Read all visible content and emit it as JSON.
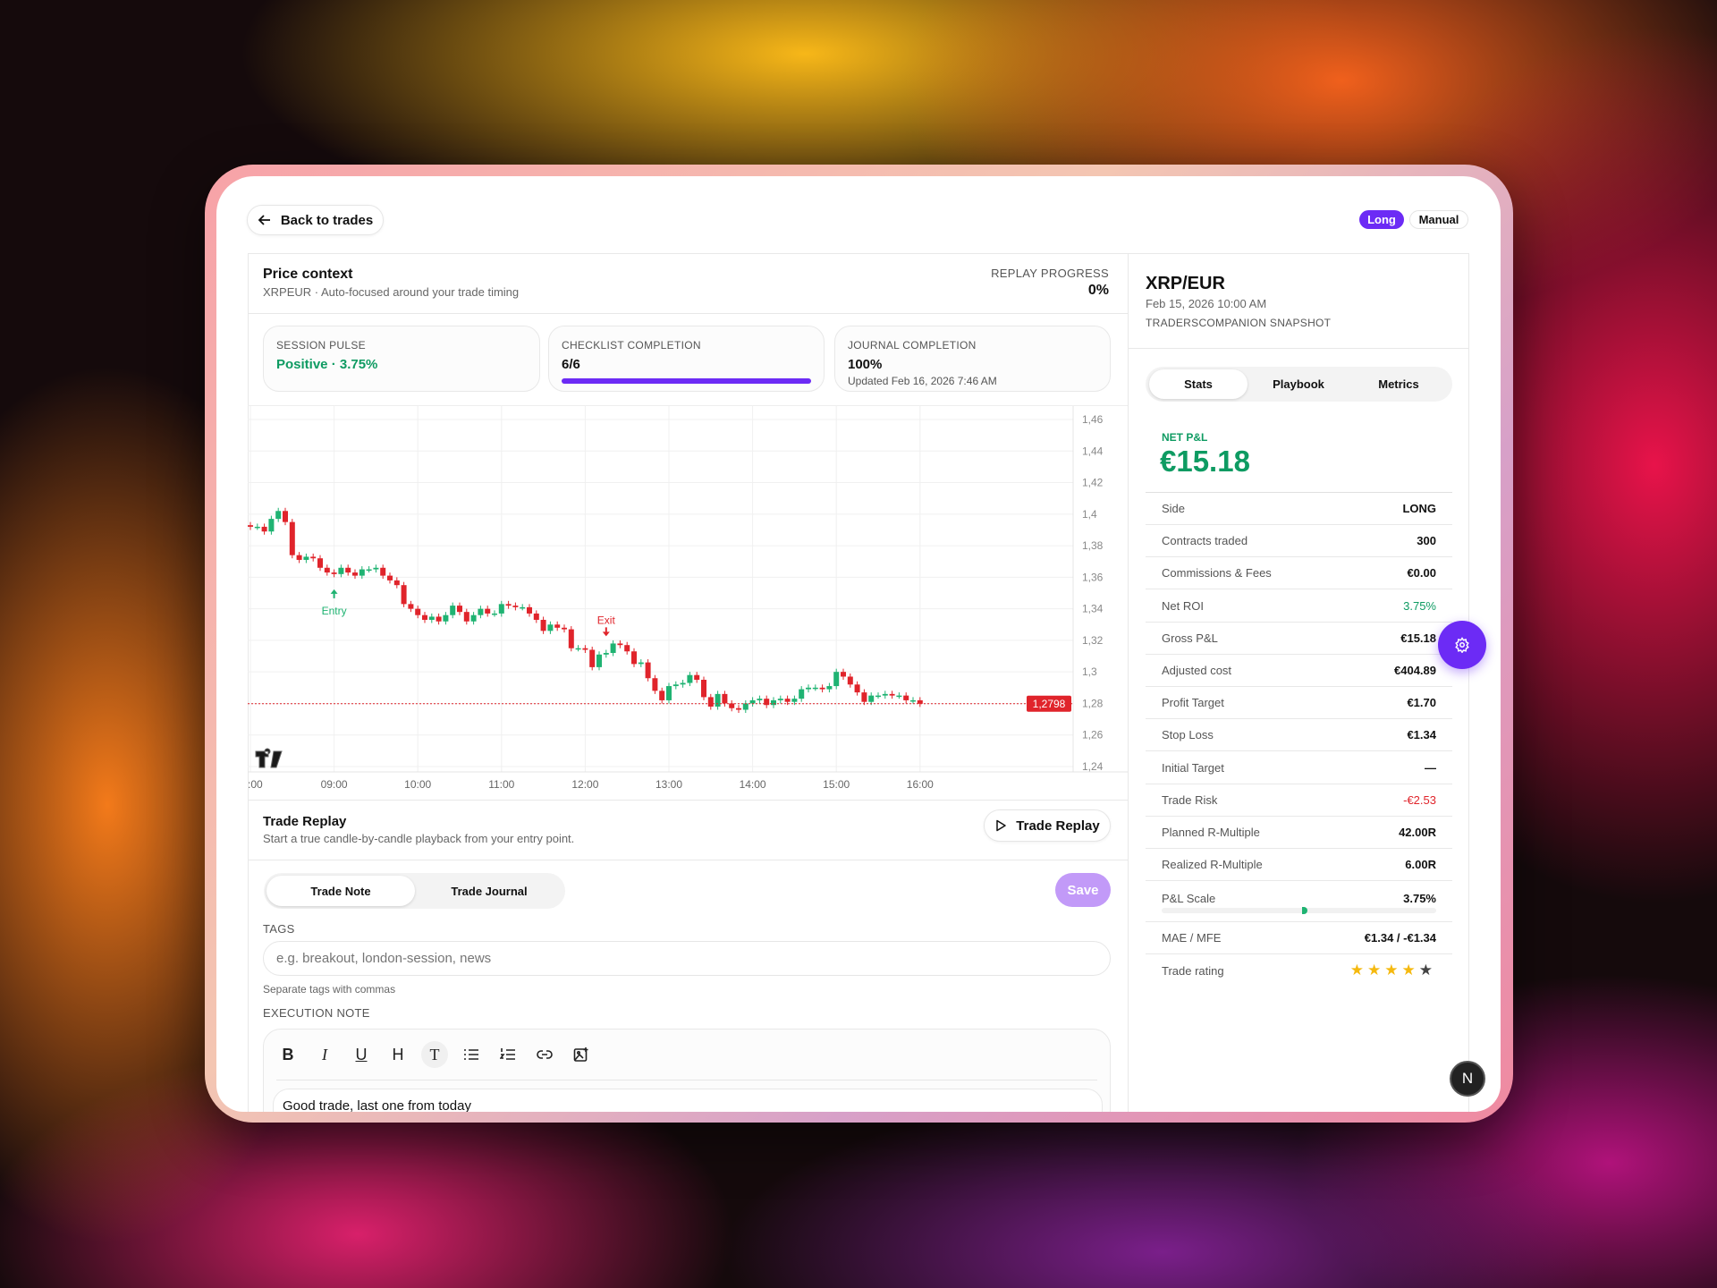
{
  "header": {
    "back_label": "Back to trades",
    "side_badge": "Long",
    "mode_badge": "Manual"
  },
  "colors": {
    "accent": "#6c2bf5",
    "positive": "#0e9b62",
    "negative": "#e0242b",
    "candle_up": "#1fb372",
    "candle_down": "#e0242b",
    "star": "#f5b90f"
  },
  "price_context": {
    "title": "Price context",
    "subtitle": "XRPEUR · Auto-focused around your trade timing",
    "replay_label": "REPLAY PROGRESS",
    "replay_value": "0%",
    "replay_percent": 0
  },
  "cards": [
    {
      "label": "SESSION PULSE",
      "value": "Positive · 3.75%"
    },
    {
      "label": "CHECKLIST COMPLETION",
      "value": "6/6",
      "progress": 1.0
    },
    {
      "label": "JOURNAL COMPLETION",
      "value": "100%",
      "sub": "Updated Feb 16, 2026 7:46 AM"
    }
  ],
  "chart_data": {
    "type": "candlestick",
    "interval": "5m",
    "x_start": "08:00",
    "x_end": "16:00",
    "x_ticks": [
      ":00",
      "09:00",
      "10:00",
      "11:00",
      "12:00",
      "13:00",
      "14:00",
      "15:00",
      "16:00"
    ],
    "y_ticks": [
      "1,46",
      "1,44",
      "1,42",
      "1,4",
      "1,38",
      "1,36",
      "1,34",
      "1,32",
      "1,3",
      "1,28",
      "1,26",
      "1,24"
    ],
    "y_tick_values": [
      1.46,
      1.44,
      1.42,
      1.4,
      1.38,
      1.36,
      1.34,
      1.32,
      1.3,
      1.28,
      1.26,
      1.24
    ],
    "ylim": [
      1.24,
      1.46
    ],
    "first_open": 1.393,
    "closes": [
      1.392,
      1.392,
      1.389,
      1.397,
      1.402,
      1.395,
      1.374,
      1.371,
      1.373,
      1.372,
      1.366,
      1.363,
      1.362,
      1.366,
      1.363,
      1.361,
      1.365,
      1.365,
      1.366,
      1.361,
      1.358,
      1.355,
      1.343,
      1.34,
      1.336,
      1.333,
      1.335,
      1.332,
      1.336,
      1.342,
      1.338,
      1.332,
      1.336,
      1.34,
      1.337,
      1.337,
      1.343,
      1.342,
      1.341,
      1.341,
      1.337,
      1.333,
      1.326,
      1.33,
      1.328,
      1.327,
      1.315,
      1.315,
      1.314,
      1.303,
      1.311,
      1.312,
      1.318,
      1.317,
      1.313,
      1.305,
      1.306,
      1.296,
      1.288,
      1.282,
      1.291,
      1.292,
      1.293,
      1.298,
      1.295,
      1.284,
      1.278,
      1.286,
      1.28,
      1.277,
      1.276,
      1.28,
      1.282,
      1.283,
      1.279,
      1.282,
      1.283,
      1.281,
      1.283,
      1.289,
      1.29,
      1.29,
      1.289,
      1.291,
      1.3,
      1.297,
      1.292,
      1.287,
      1.281,
      1.285,
      1.285,
      1.286,
      1.285,
      1.285,
      1.282,
      1.282,
      1.2798
    ],
    "current_price": 1.2798,
    "current_price_label": "1,2798",
    "entry": {
      "label": "Entry",
      "time": "09:00",
      "price": 1.362
    },
    "exit": {
      "label": "Exit",
      "time": "12:15",
      "price": 1.318
    },
    "grid": true
  },
  "replay": {
    "title": "Trade Replay",
    "subtitle": "Start a true candle-by-candle playback from your entry point.",
    "button": "Trade Replay"
  },
  "note_tabs": [
    {
      "label": "Trade Note",
      "active": true
    },
    {
      "label": "Trade Journal",
      "active": false
    }
  ],
  "save_label": "Save",
  "tags": {
    "label": "TAGS",
    "placeholder": "e.g. breakout, london-session, news",
    "value": "",
    "helper": "Separate tags with commas"
  },
  "execution": {
    "label": "EXECUTION NOTE",
    "text": "Good trade, last one from today",
    "toolbar": [
      "bold",
      "italic",
      "underline",
      "heading",
      "text",
      "bullet-list",
      "numbered-list",
      "link",
      "image"
    ]
  },
  "summary": {
    "pair": "XRP/EUR",
    "date": "Feb 15, 2026 10:00 AM",
    "source": "TRADERSCOMPANION SNAPSHOT"
  },
  "side_tabs": [
    {
      "label": "Stats",
      "active": true
    },
    {
      "label": "Playbook",
      "active": false
    },
    {
      "label": "Metrics",
      "active": false
    }
  ],
  "net_pnl": {
    "label": "NET P&L",
    "value": "€15.18"
  },
  "stats": [
    {
      "label": "Side",
      "value": "LONG"
    },
    {
      "label": "Contracts traded",
      "value": "300"
    },
    {
      "label": "Commissions & Fees",
      "value": "€0.00"
    },
    {
      "label": "Net ROI",
      "value": "3.75%",
      "tone": "positive"
    },
    {
      "label": "Gross P&L",
      "value": "€15.18"
    },
    {
      "label": "Adjusted cost",
      "value": "€404.89"
    },
    {
      "label": "Profit Target",
      "value": "€1.70"
    },
    {
      "label": "Stop Loss",
      "value": "€1.34"
    },
    {
      "label": "Initial Target",
      "value": "—"
    },
    {
      "label": "Trade Risk",
      "value": "-€2.53",
      "tone": "negative"
    },
    {
      "label": "Planned R-Multiple",
      "value": "42.00R"
    },
    {
      "label": "Realized R-Multiple",
      "value": "6.00R"
    }
  ],
  "pl_scale": {
    "label": "P&L Scale",
    "value": "3.75%",
    "percent": 3.75
  },
  "mae_mfe": {
    "label": "MAE / MFE",
    "value": "€1.34 / -€1.34"
  },
  "rating": {
    "label": "Trade rating",
    "value": 4,
    "max": 5
  },
  "fab": {
    "icon": "gear-icon"
  },
  "n_badge": {
    "text": "N"
  }
}
